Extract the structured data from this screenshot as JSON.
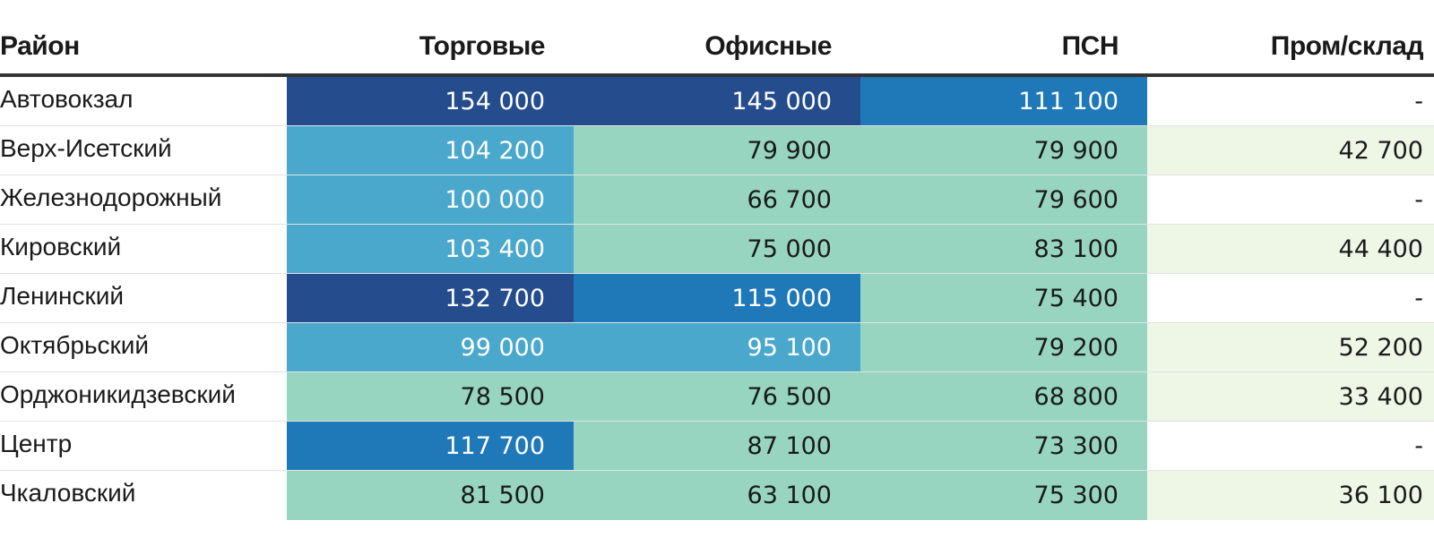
{
  "chart_data": {
    "type": "table",
    "title": "",
    "columns": [
      "Район",
      "Торговые",
      "Офисные",
      "ПСН",
      "Пром/склад"
    ],
    "rows": [
      {
        "district": "Автовокзал",
        "values": [
          "154 000",
          "145 000",
          "111 100",
          "-"
        ]
      },
      {
        "district": "Верх-Исетский",
        "values": [
          "104 200",
          "79 900",
          "79 900",
          "42 700"
        ]
      },
      {
        "district": "Железнодорожный",
        "values": [
          "100 000",
          "66 700",
          "79 600",
          "-"
        ]
      },
      {
        "district": "Кировский",
        "values": [
          "103 400",
          "75 000",
          "83 100",
          "44 400"
        ]
      },
      {
        "district": "Ленинский",
        "values": [
          "132 700",
          "115 000",
          "75 400",
          "-"
        ]
      },
      {
        "district": "Октябрьский",
        "values": [
          "99 000",
          "95 100",
          "79 200",
          "52 200"
        ]
      },
      {
        "district": "Орджоникидзевский",
        "values": [
          "78 500",
          "76 500",
          "68 800",
          "33 400"
        ]
      },
      {
        "district": "Центр",
        "values": [
          "117 700",
          "87 100",
          "73 300",
          "-"
        ]
      },
      {
        "district": "Чкаловский",
        "values": [
          "81 500",
          "63 100",
          "75 300",
          "36 100"
        ]
      }
    ],
    "color_scales": {
      "main": {
        "thresholds": [
          90000,
          110000,
          130000
        ],
        "colors": [
          "#97d5c0",
          "#4aa8cc",
          "#1f78b8",
          "#254c8c"
        ],
        "text_colors": [
          "#1a1a1a",
          "#ffffff",
          "#ffffff",
          "#ffffff"
        ]
      },
      "industrial": {
        "color": "#eef7e6",
        "empty_color": "#ffffff"
      }
    }
  }
}
